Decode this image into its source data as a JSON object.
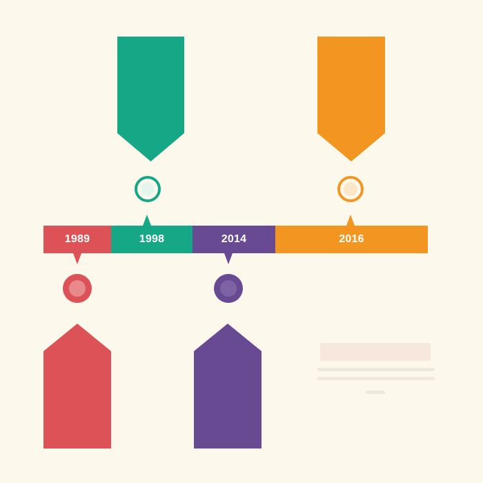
{
  "timeline": {
    "segments": [
      {
        "year": "1989",
        "color": "#dc5256"
      },
      {
        "year": "1998",
        "color": "#16a886"
      },
      {
        "year": "2014",
        "color": "#674a92"
      },
      {
        "year": "2016",
        "color": "#f39521"
      }
    ]
  },
  "markers": {
    "m1989": {
      "icon": "circle-icon",
      "color": "#dc5256"
    },
    "m1998": {
      "icon": "circle-icon",
      "color": "#16a886"
    },
    "m2014": {
      "icon": "circle-icon",
      "color": "#674a92"
    },
    "m2016": {
      "icon": "circle-icon",
      "color": "#f39521"
    }
  },
  "banners": {
    "b1998": {
      "color": "#16a886"
    },
    "b2016": {
      "color": "#f39521"
    },
    "b1989": {
      "color": "#dc5256"
    },
    "b2014": {
      "color": "#674a92"
    }
  }
}
